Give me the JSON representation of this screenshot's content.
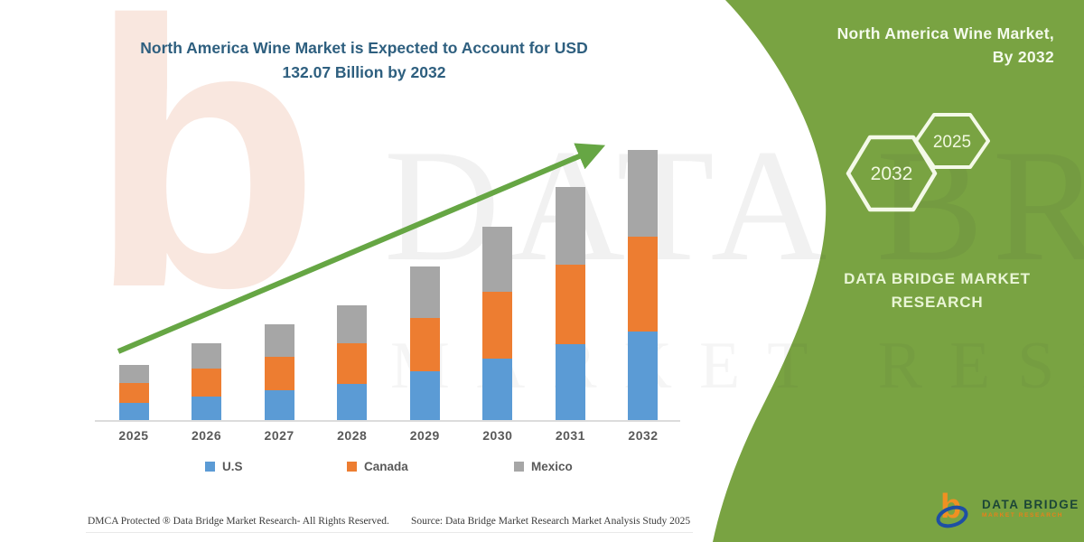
{
  "header": {
    "title_line1": "North America Wine Market is Expected to Account for USD",
    "title_line2": "132.07 Billion by 2032"
  },
  "chart_data": {
    "type": "bar",
    "stacked": true,
    "title": "North America Wine Market is Expected to Account for USD 132.07 Billion by 2032",
    "categories": [
      "2025",
      "2026",
      "2027",
      "2028",
      "2029",
      "2030",
      "2031",
      "2032"
    ],
    "series": [
      {
        "name": "U.S",
        "color": "#5B9BD5",
        "values": [
          8.4,
          11.5,
          14.6,
          17.7,
          23.9,
          30.1,
          37.2,
          43.4
        ]
      },
      {
        "name": "Canada",
        "color": "#ED7D31",
        "values": [
          9.8,
          13.7,
          16.4,
          19.9,
          26.1,
          32.8,
          38.6,
          46.1
        ]
      },
      {
        "name": "Mexico",
        "color": "#A6A6A6",
        "values": [
          8.9,
          12.4,
          16.0,
          18.6,
          25.3,
          31.5,
          38.1,
          42.6
        ]
      }
    ],
    "totals": [
      27.1,
      37.6,
      47.0,
      56.2,
      75.3,
      94.4,
      113.9,
      132.07
    ],
    "unit": "USD Billion",
    "ylim": [
      0,
      140
    ],
    "y_axis_visible": false,
    "gridlines": false,
    "legend_position": "bottom",
    "values_note": "Segment values visually estimated; only the 2032 total (USD 132.07 Billion) is stated on the chart",
    "annotation_arrow": "upward green trend arrow from 2025 to 2032"
  },
  "panel": {
    "title_line1": "North America Wine Market,",
    "title_line2": "By 2032",
    "hexagons": [
      {
        "label": "2032"
      },
      {
        "label": "2025"
      }
    ],
    "brand_line1": "DATA BRIDGE MARKET",
    "brand_line2": "RESEARCH",
    "logo": {
      "letter": "b",
      "name": "DATA BRIDGE",
      "tagline": "MARKET RESEARCH"
    }
  },
  "footer": {
    "dmca": "DMCA Protected ® Data Bridge Market Research-  All Rights Reserved.",
    "source": "Source: Data Bridge Market Research  Market Analysis Study 2025"
  },
  "watermarks": {
    "logo_letter": "b",
    "line1": "DATA BRIDGE",
    "line2": "MARKET RESEARCH"
  },
  "colors": {
    "panel_green": "#79A342",
    "arrow_green": "#66A644",
    "title_blue": "#2E5F7F",
    "us_blue": "#5B9BD5",
    "canada_orange": "#ED7D31",
    "mexico_gray": "#A6A6A6",
    "label_gray": "#595959"
  }
}
